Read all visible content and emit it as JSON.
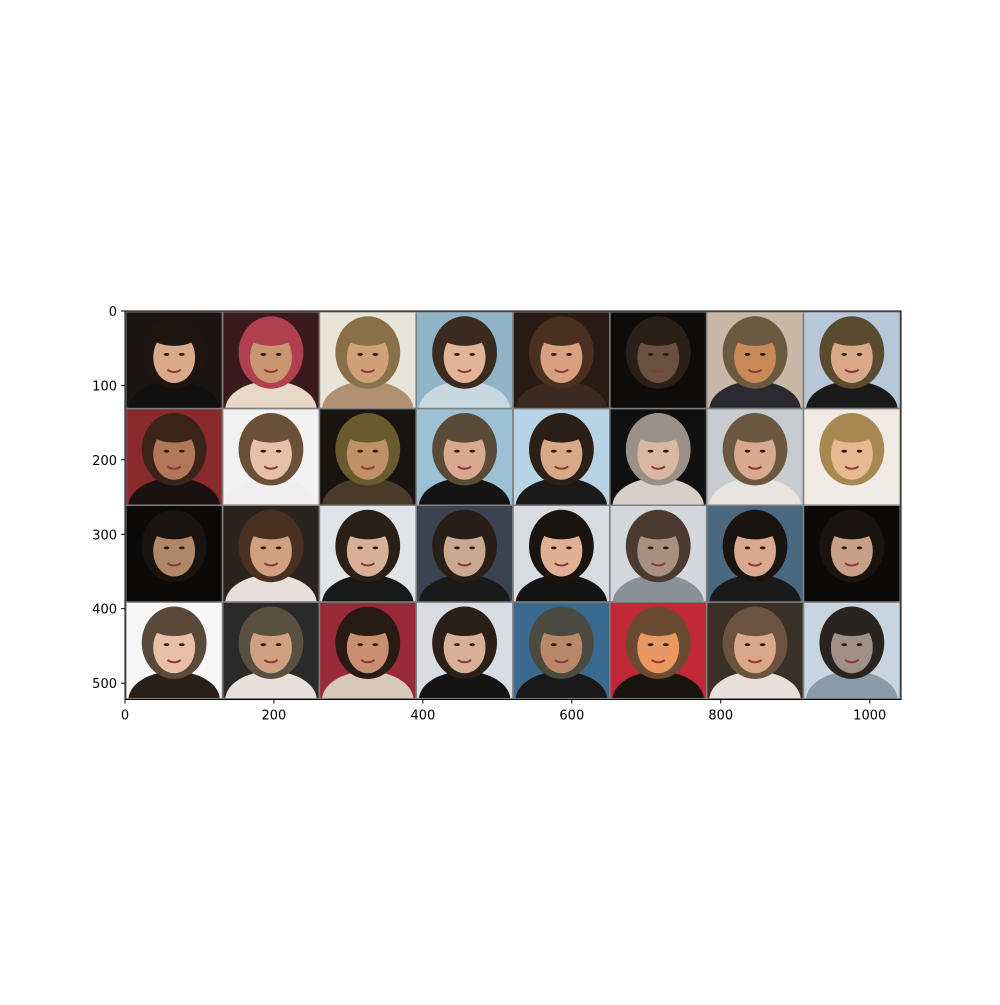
{
  "chart_data": {
    "type": "image-grid",
    "title": "",
    "xlabel": "",
    "ylabel": "",
    "xlim": [
      0,
      1042
    ],
    "ylim": [
      522,
      0
    ],
    "x_ticks": [
      0,
      200,
      400,
      600,
      800,
      1000
    ],
    "y_ticks": [
      0,
      100,
      200,
      300,
      400,
      500
    ],
    "grid": false,
    "grid_rows": 4,
    "grid_cols": 8,
    "tile_size": 128,
    "tile_padding": 2,
    "padding_color": "#7f7f7f",
    "tiles": [
      {
        "bg": "#1a1512",
        "hair": "#1e1410",
        "skin": "#d9a98a",
        "shirt": "#111111"
      },
      {
        "bg": "#3a1a1c",
        "hair": "#b04050",
        "skin": "#c99670",
        "shirt": "#e8d8c8"
      },
      {
        "bg": "#e8e4d8",
        "hair": "#8a7048",
        "skin": "#d0a078",
        "shirt": "#b09070"
      },
      {
        "bg": "#8fb4c8",
        "hair": "#3a2a20",
        "skin": "#e2b496",
        "shirt": "#c8d8e0"
      },
      {
        "bg": "#2a1a14",
        "hair": "#4a3020",
        "skin": "#d8a080",
        "shirt": "#3a2a20"
      },
      {
        "bg": "#0e0c0a",
        "hair": "#2a2018",
        "skin": "#6a5040",
        "shirt": "#0e0c0a"
      },
      {
        "bg": "#c8b8a8",
        "hair": "#6a5a40",
        "skin": "#c88858",
        "shirt": "#2a2a30"
      },
      {
        "bg": "#b8c8d8",
        "hair": "#5a4a30",
        "skin": "#d8a888",
        "shirt": "#1a1a1a"
      },
      {
        "bg": "#8a2a2c",
        "hair": "#3a2418",
        "skin": "#b07858",
        "shirt": "#1a1210"
      },
      {
        "bg": "#f2f2f2",
        "hair": "#6a5038",
        "skin": "#e6c0a8",
        "shirt": "#f0eeee"
      },
      {
        "bg": "#1a1410",
        "hair": "#6a5a30",
        "skin": "#c09068",
        "shirt": "#4a3a28"
      },
      {
        "bg": "#9cc0d4",
        "hair": "#5a4a38",
        "skin": "#d8a890",
        "shirt": "#141414"
      },
      {
        "bg": "#b8d4e4",
        "hair": "#2a2018",
        "skin": "#d8a888",
        "shirt": "#1a1a1a"
      },
      {
        "bg": "#101010",
        "hair": "#9a9088",
        "skin": "#d8b8a0",
        "shirt": "#d8d0c8"
      },
      {
        "bg": "#c8ccd0",
        "hair": "#6a5840",
        "skin": "#d8a890",
        "shirt": "#e8e4e0"
      },
      {
        "bg": "#f0ece4",
        "hair": "#a88850",
        "skin": "#e8b890",
        "shirt": "#f0ece8"
      },
      {
        "bg": "#0c0a08",
        "hair": "#1a1410",
        "skin": "#b08868",
        "shirt": "#0c0a08"
      },
      {
        "bg": "#2a2420",
        "hair": "#4a3020",
        "skin": "#d0a080",
        "shirt": "#e8e0d8"
      },
      {
        "bg": "#e0e4e8",
        "hair": "#2a2018",
        "skin": "#d8b098",
        "shirt": "#181818"
      },
      {
        "bg": "#3a4450",
        "hair": "#2a1e18",
        "skin": "#c8a890",
        "shirt": "#1a1a1a"
      },
      {
        "bg": "#d8dce0",
        "hair": "#1a1410",
        "skin": "#e0b094",
        "shirt": "#141414"
      },
      {
        "bg": "#d4d8dc",
        "hair": "#4a3a30",
        "skin": "#a89080",
        "shirt": "#8a9098"
      },
      {
        "bg": "#4a6880",
        "hair": "#1a1410",
        "skin": "#d8a890",
        "shirt": "#1a1a1a"
      },
      {
        "bg": "#0c0a08",
        "hair": "#1a1410",
        "skin": "#c8a088",
        "shirt": "#0c0a08"
      },
      {
        "bg": "#f6f6f6",
        "hair": "#5a4838",
        "skin": "#e8c0a8",
        "shirt": "#2a2018"
      },
      {
        "bg": "#2a2a2a",
        "hair": "#5a5040",
        "skin": "#d0a080",
        "shirt": "#e8e0d8"
      },
      {
        "bg": "#9a2a3a",
        "hair": "#2a1a14",
        "skin": "#c89070",
        "shirt": "#d8c8b8"
      },
      {
        "bg": "#d8dce4",
        "hair": "#2a2018",
        "skin": "#d8b098",
        "shirt": "#141414"
      },
      {
        "bg": "#3a6a90",
        "hair": "#4a4a40",
        "skin": "#b88868",
        "shirt": "#181818"
      },
      {
        "bg": "#c0283a",
        "hair": "#6a4a30",
        "skin": "#e89860",
        "shirt": "#1a1410"
      },
      {
        "bg": "#3a3028",
        "hair": "#6a5440",
        "skin": "#d8a888",
        "shirt": "#e8e0d8"
      },
      {
        "bg": "#c8d4e0",
        "hair": "#2a2420",
        "skin": "#a09088",
        "shirt": "#8a9aa8"
      }
    ]
  }
}
